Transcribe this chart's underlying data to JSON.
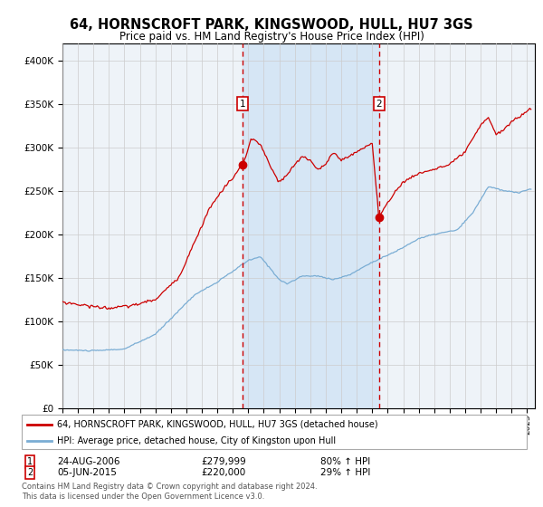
{
  "title": "64, HORNSCROFT PARK, KINGSWOOD, HULL, HU7 3GS",
  "subtitle": "Price paid vs. HM Land Registry's House Price Index (HPI)",
  "red_label": "64, HORNSCROFT PARK, KINGSWOOD, HULL, HU7 3GS (detached house)",
  "blue_label": "HPI: Average price, detached house, City of Kingston upon Hull",
  "sale1_date": "24-AUG-2006",
  "sale1_price": 279999,
  "sale1_hpi_pct": "80% ↑ HPI",
  "sale2_date": "05-JUN-2015",
  "sale2_price": 220000,
  "sale2_hpi_pct": "29% ↑ HPI",
  "footer": "Contains HM Land Registry data © Crown copyright and database right 2024.\nThis data is licensed under the Open Government Licence v3.0.",
  "background_color": "#ffffff",
  "plot_bg_color": "#eef3f8",
  "shade_color": "#d6e6f5",
  "red_color": "#cc0000",
  "blue_color": "#7aadd4",
  "grid_color": "#cccccc",
  "dashed_color": "#cc0000",
  "ylim": [
    0,
    420000
  ],
  "yticks": [
    0,
    50000,
    100000,
    150000,
    200000,
    250000,
    300000,
    350000,
    400000
  ],
  "sale1_x": 2006.65,
  "sale2_x": 2015.43,
  "xlim_left": 1995.0,
  "xlim_right": 2025.5
}
